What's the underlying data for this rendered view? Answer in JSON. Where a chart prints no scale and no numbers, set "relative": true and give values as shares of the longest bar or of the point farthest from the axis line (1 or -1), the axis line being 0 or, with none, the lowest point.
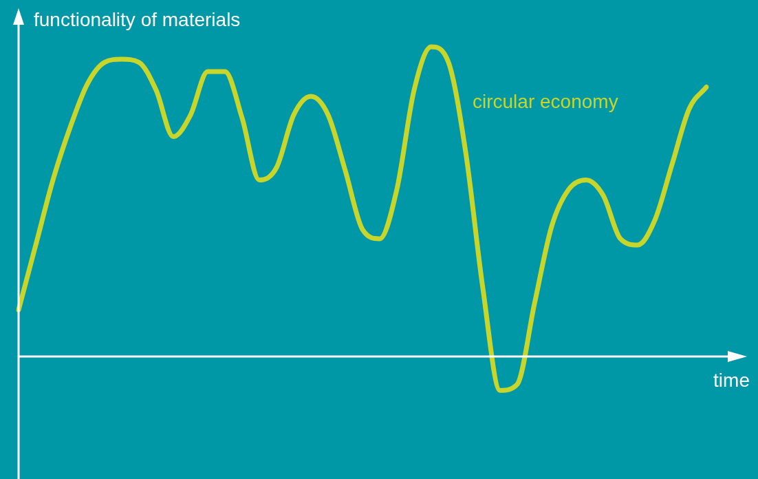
{
  "chart_data": {
    "type": "line",
    "relative": true,
    "xlabel": "time",
    "ylabel": "functionality of materials",
    "marker": "none",
    "categories": [
      null,
      null,
      null,
      null,
      null,
      null,
      null,
      null,
      null,
      null,
      null,
      null,
      null,
      null,
      null,
      null,
      null,
      null,
      null,
      null,
      null,
      null,
      null,
      null,
      null,
      null,
      null,
      null,
      null,
      null,
      null,
      null,
      null,
      null,
      null,
      null,
      null,
      null,
      null,
      null,
      null
    ],
    "series": [
      {
        "name": "circular economy",
        "color": "#c8d62b",
        "values": [
          0.15,
          0.36,
          0.57,
          0.74,
          0.88,
          0.95,
          0.96,
          0.95,
          0.86,
          0.71,
          0.78,
          0.92,
          0.92,
          0.77,
          0.57,
          0.61,
          0.78,
          0.84,
          0.78,
          0.6,
          0.41,
          0.38,
          0.54,
          0.86,
          1.0,
          0.95,
          0.66,
          0.22,
          -0.11,
          -0.09,
          0.17,
          0.42,
          0.54,
          0.57,
          0.52,
          0.38,
          0.36,
          0.44,
          0.62,
          0.8,
          0.87
        ]
      }
    ]
  }
}
